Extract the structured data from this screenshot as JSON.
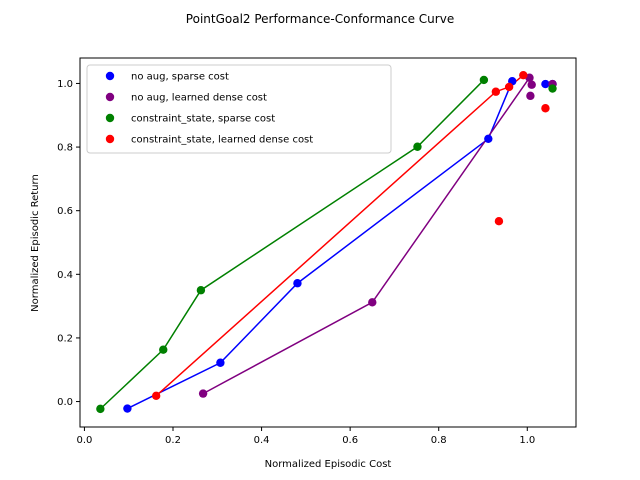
{
  "chart_data": {
    "type": "scatter",
    "title": "PointGoal2 Performance-Conformance Curve",
    "xlabel": "Normalized Episodic Cost",
    "ylabel": "Normalized Episodic Return",
    "xlim": [
      -0.01,
      1.11
    ],
    "ylim": [
      -0.08,
      1.08
    ],
    "xticks": [
      0.0,
      0.2,
      0.4,
      0.6,
      0.8,
      1.0
    ],
    "xtick_labels": [
      "0.0",
      "0.2",
      "0.4",
      "0.6",
      "0.8",
      "1.0"
    ],
    "yticks": [
      0.0,
      0.2,
      0.4,
      0.6,
      0.8,
      1.0
    ],
    "ytick_labels": [
      "0.0",
      "0.2",
      "0.4",
      "0.6",
      "0.8",
      "1.0"
    ],
    "grid": false,
    "legend_position": "top-left",
    "series": [
      {
        "name": "no aug, sparse cost",
        "color": "#0000ff",
        "points": [
          [
            0.097,
            -0.022
          ],
          [
            0.307,
            0.122
          ],
          [
            0.481,
            0.372
          ],
          [
            0.912,
            0.826
          ],
          [
            0.966,
            1.007
          ],
          [
            1.041,
            0.998
          ],
          [
            1.057,
            0.998
          ]
        ],
        "frontier": [
          [
            0.097,
            -0.022
          ],
          [
            0.307,
            0.122
          ],
          [
            0.481,
            0.372
          ],
          [
            0.912,
            0.826
          ],
          [
            0.966,
            1.007
          ]
        ]
      },
      {
        "name": "no aug, learned dense cost",
        "color": "#800080",
        "points": [
          [
            0.268,
            0.025
          ],
          [
            0.65,
            0.312
          ],
          [
            1.005,
            1.018
          ],
          [
            1.01,
            0.996
          ],
          [
            1.007,
            0.961
          ],
          [
            1.057,
            0.998
          ]
        ],
        "frontier": [
          [
            0.268,
            0.025
          ],
          [
            0.65,
            0.312
          ],
          [
            1.005,
            1.018
          ]
        ]
      },
      {
        "name": "constraint_state, sparse cost",
        "color": "#008000",
        "points": [
          [
            0.036,
            -0.023
          ],
          [
            0.178,
            0.163
          ],
          [
            0.263,
            0.35
          ],
          [
            0.752,
            0.801
          ],
          [
            0.902,
            1.011
          ],
          [
            1.057,
            0.984
          ]
        ],
        "frontier": [
          [
            0.036,
            -0.023
          ],
          [
            0.178,
            0.163
          ],
          [
            0.263,
            0.35
          ],
          [
            0.752,
            0.801
          ],
          [
            0.902,
            1.011
          ]
        ]
      },
      {
        "name": "constraint_state, learned dense cost",
        "color": "#ff0000",
        "points": [
          [
            0.162,
            0.018
          ],
          [
            0.929,
            0.974
          ],
          [
            0.959,
            0.989
          ],
          [
            0.991,
            1.026
          ],
          [
            0.936,
            0.567
          ],
          [
            1.041,
            0.922
          ]
        ],
        "frontier": [
          [
            0.162,
            0.018
          ],
          [
            0.929,
            0.974
          ],
          [
            0.959,
            0.989
          ],
          [
            0.991,
            1.026
          ]
        ]
      }
    ]
  }
}
